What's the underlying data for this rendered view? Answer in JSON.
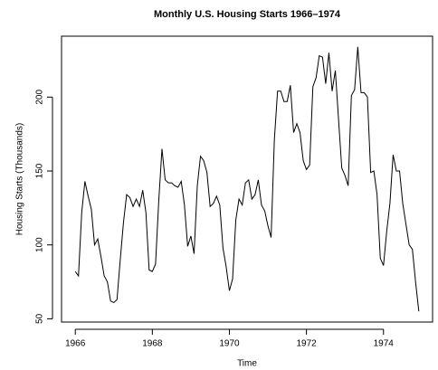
{
  "chart_data": {
    "type": "line",
    "title": "Monthly U.S. Housing Starts 1966–1974",
    "x_label": "Time",
    "y_label": "Housing Starts (Thousands)",
    "x": [
      1966,
      1966.083,
      1966.167,
      1966.25,
      1966.333,
      1966.417,
      1966.5,
      1966.583,
      1966.667,
      1966.75,
      1966.833,
      1966.917,
      1967,
      1967.083,
      1967.167,
      1967.25,
      1967.333,
      1967.417,
      1967.5,
      1967.583,
      1967.667,
      1967.75,
      1967.833,
      1967.917,
      1968,
      1968.083,
      1968.167,
      1968.25,
      1968.333,
      1968.417,
      1968.5,
      1968.583,
      1968.667,
      1968.75,
      1968.833,
      1968.917,
      1969,
      1969.083,
      1969.167,
      1969.25,
      1969.333,
      1969.417,
      1969.5,
      1969.583,
      1969.667,
      1969.75,
      1969.833,
      1969.917,
      1970,
      1970.083,
      1970.167,
      1970.25,
      1970.333,
      1970.417,
      1970.5,
      1970.583,
      1970.667,
      1970.75,
      1970.833,
      1970.917,
      1971,
      1971.083,
      1971.167,
      1971.25,
      1971.333,
      1971.417,
      1971.5,
      1971.583,
      1971.667,
      1971.75,
      1971.833,
      1971.917,
      1972,
      1972.083,
      1972.167,
      1972.25,
      1972.333,
      1972.417,
      1972.5,
      1972.583,
      1972.667,
      1972.75,
      1972.833,
      1972.917,
      1973,
      1973.083,
      1973.167,
      1973.25,
      1973.333,
      1973.417,
      1973.5,
      1973.583,
      1973.667,
      1973.75,
      1973.833,
      1973.917,
      1974,
      1974.083,
      1974.167,
      1974.25,
      1974.333,
      1974.417,
      1974.5,
      1974.583,
      1974.667,
      1974.75,
      1974.833,
      1974.917
    ],
    "series": [
      {
        "name": "Housing Starts",
        "color": "#000000",
        "values": [
          82,
          79,
          122,
          143,
          133,
          124,
          100,
          104,
          92,
          79,
          75,
          62,
          61,
          63,
          90,
          115,
          134,
          132,
          126,
          131,
          126,
          137,
          122,
          83,
          82,
          87,
          130,
          165,
          144,
          142,
          142,
          140,
          139,
          143,
          127,
          99,
          106,
          94,
          140,
          160,
          157,
          149,
          126,
          128,
          133,
          127,
          98,
          85,
          69,
          77,
          117,
          131,
          127,
          142,
          144,
          131,
          134,
          144,
          127,
          123,
          113,
          105,
          171,
          204,
          204,
          197,
          197,
          208,
          176,
          182,
          176,
          157,
          151,
          154,
          207,
          213,
          228,
          227,
          209,
          230,
          204,
          218,
          185,
          152,
          147,
          140,
          201,
          205,
          234,
          203,
          203,
          200,
          149,
          150,
          134,
          91,
          86,
          109,
          128,
          161,
          150,
          150,
          128,
          114,
          100,
          97,
          75,
          55
        ]
      }
    ],
    "xlim": [
      1965.643,
      1975.274
    ],
    "xticks": [
      1966,
      1968,
      1970,
      1972,
      1974
    ],
    "ylim": [
      47.8,
      241.2
    ],
    "yticks": [
      50,
      100,
      150,
      200
    ]
  }
}
